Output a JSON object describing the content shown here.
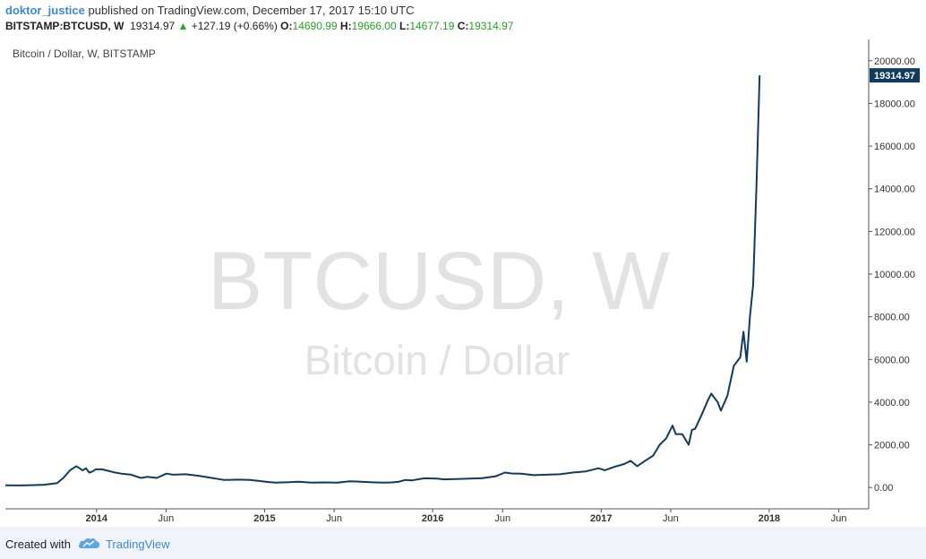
{
  "header": {
    "author": "doktor_justice",
    "published_text": "published on TradingView.com, December 17, 2017 15:10 UTC",
    "symbol": "BITSTAMP:BTCUSD, W",
    "last": "19314.97",
    "change": "+127.19 (+0.66%)",
    "open_label": "O:",
    "open": "14690.99",
    "high_label": "H:",
    "high": "19666.00",
    "low_label": "L:",
    "low": "14677.19",
    "close_label": "C:",
    "close": "19314.97"
  },
  "colors": {
    "line": "#123a5e",
    "up": "#22a722",
    "accent": "#3a8bd6"
  },
  "footer": {
    "created": "Created with",
    "brand": "TradingView",
    "logo_icon": "tradingview-cloud-icon"
  },
  "chart_data": {
    "type": "line",
    "title": "Bitcoin / Dollar, W, BITSTAMP",
    "watermark_main": "BTCUSD, W",
    "watermark_sub": "Bitcoin / Dollar",
    "last_price_label": "19314.97",
    "ylim": [
      -1000,
      21000
    ],
    "y_ticks": [
      0,
      2000,
      4000,
      6000,
      8000,
      10000,
      12000,
      14000,
      16000,
      18000,
      20000
    ],
    "y_tick_labels": [
      "0.00",
      "2000.00",
      "4000.00",
      "6000.00",
      "8000.00",
      "10000.00",
      "12000.00",
      "14000.00",
      "16000.00",
      "18000.00",
      "20000.00"
    ],
    "xlim": [
      "2013-06-17",
      "2018-08-05"
    ],
    "x_ticks": [
      {
        "date": "2014-01-01",
        "label": "2014"
      },
      {
        "date": "2014-06-01",
        "label": "Jun"
      },
      {
        "date": "2015-01-01",
        "label": "2015"
      },
      {
        "date": "2015-06-01",
        "label": "Jun"
      },
      {
        "date": "2016-01-01",
        "label": "2016"
      },
      {
        "date": "2016-06-01",
        "label": "Jun"
      },
      {
        "date": "2017-01-01",
        "label": "2017"
      },
      {
        "date": "2017-06-01",
        "label": "Jun"
      },
      {
        "date": "2018-01-01",
        "label": "2018"
      },
      {
        "date": "2018-06-01",
        "label": "Jun"
      }
    ],
    "series": [
      {
        "x": [
          "2013-06-17",
          "2013-07-15",
          "2013-08-12",
          "2013-09-09",
          "2013-10-07",
          "2013-10-21",
          "2013-11-04",
          "2013-11-18",
          "2013-12-02",
          "2013-12-09",
          "2013-12-16",
          "2013-12-23",
          "2013-12-30",
          "2014-01-13",
          "2014-02-10",
          "2014-02-24",
          "2014-03-17",
          "2014-04-07",
          "2014-04-21",
          "2014-05-12",
          "2014-06-02",
          "2014-06-16",
          "2014-07-14",
          "2014-08-11",
          "2014-09-08",
          "2014-10-06",
          "2014-11-03",
          "2014-12-01",
          "2015-01-12",
          "2015-01-26",
          "2015-02-23",
          "2015-03-16",
          "2015-04-13",
          "2015-05-11",
          "2015-06-08",
          "2015-07-06",
          "2015-07-20",
          "2015-08-17",
          "2015-09-14",
          "2015-10-05",
          "2015-10-19",
          "2015-11-02",
          "2015-11-16",
          "2015-12-14",
          "2016-01-11",
          "2016-01-25",
          "2016-02-22",
          "2016-03-21",
          "2016-04-18",
          "2016-05-16",
          "2016-06-06",
          "2016-06-20",
          "2016-07-11",
          "2016-08-08",
          "2016-09-05",
          "2016-10-03",
          "2016-10-31",
          "2016-11-28",
          "2016-12-26",
          "2017-01-09",
          "2017-01-30",
          "2017-02-20",
          "2017-03-06",
          "2017-03-20",
          "2017-04-03",
          "2017-04-24",
          "2017-05-08",
          "2017-05-22",
          "2017-06-05",
          "2017-06-12",
          "2017-06-26",
          "2017-07-10",
          "2017-07-17",
          "2017-07-24",
          "2017-08-07",
          "2017-08-21",
          "2017-08-28",
          "2017-09-11",
          "2017-09-18",
          "2017-10-02",
          "2017-10-16",
          "2017-10-30",
          "2017-11-06",
          "2017-11-13",
          "2017-11-20",
          "2017-11-27",
          "2017-12-04",
          "2017-12-11"
        ],
        "y": [
          100,
          95,
          110,
          130,
          200,
          450,
          800,
          1000,
          800,
          900,
          700,
          750,
          850,
          850,
          700,
          650,
          600,
          450,
          500,
          450,
          650,
          600,
          620,
          550,
          450,
          350,
          370,
          350,
          250,
          230,
          250,
          270,
          230,
          240,
          230,
          290,
          280,
          250,
          230,
          240,
          270,
          350,
          330,
          430,
          420,
          380,
          400,
          415,
          440,
          520,
          700,
          660,
          650,
          580,
          600,
          620,
          700,
          750,
          900,
          810,
          970,
          1100,
          1250,
          1000,
          1200,
          1500,
          2000,
          2300,
          2900,
          2500,
          2500,
          2000,
          2700,
          2750,
          3400,
          4100,
          4400,
          4000,
          3600,
          4300,
          5700,
          6100,
          7300,
          5900,
          8000,
          9500,
          14000,
          19314.97
        ]
      }
    ]
  }
}
